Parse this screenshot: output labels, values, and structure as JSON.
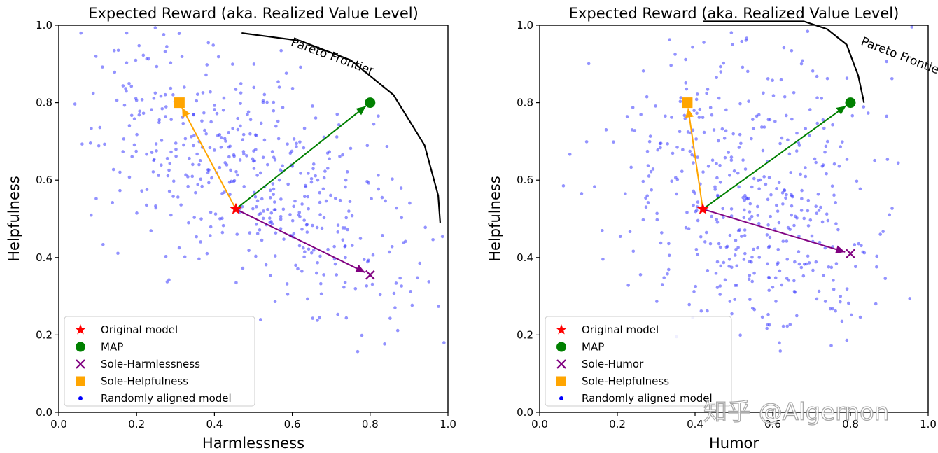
{
  "chart_data": [
    {
      "type": "scatter",
      "title": "Expected Reward (aka. Realized Value Level)",
      "xlabel": "Harmlessness",
      "ylabel": "Helpfulness",
      "xlim": [
        0.0,
        1.0
      ],
      "ylim": [
        0.0,
        1.0
      ],
      "xticks": [
        "0.0",
        "0.2",
        "0.4",
        "0.6",
        "0.8",
        "1.0"
      ],
      "yticks": [
        "0.0",
        "0.2",
        "0.4",
        "0.6",
        "0.8",
        "1.0"
      ],
      "legend_position": "lower-left",
      "annotation": "Pareto Frontier",
      "random_seed": 7,
      "random_count": 480,
      "random_cloud": {
        "center": [
          0.5,
          0.6
        ],
        "direction": [
          1.0,
          -0.78
        ],
        "spread_along": 0.28,
        "spread_across": 0.13
      },
      "frontier": [
        [
          0.47,
          0.98
        ],
        [
          0.62,
          0.96
        ],
        [
          0.75,
          0.91
        ],
        [
          0.86,
          0.82
        ],
        [
          0.94,
          0.69
        ],
        [
          0.975,
          0.56
        ],
        [
          0.98,
          0.49
        ]
      ],
      "origin": {
        "label": "Original model",
        "x": 0.455,
        "y": 0.525,
        "color": "#ff0000"
      },
      "points": [
        {
          "label": "MAP",
          "x": 0.8,
          "y": 0.8,
          "color": "#008000",
          "marker": "circle"
        },
        {
          "label": "Sole-Harmlessness",
          "x": 0.8,
          "y": 0.355,
          "color": "#800080",
          "marker": "x"
        },
        {
          "label": "Sole-Helpfulness",
          "x": 0.31,
          "y": 0.8,
          "color": "#ffa500",
          "marker": "square"
        }
      ],
      "legend": [
        "Original model",
        "MAP",
        "Sole-Harmlessness",
        "Sole-Helpfulness",
        "Randomly aligned model"
      ]
    },
    {
      "type": "scatter",
      "title": "Expected Reward (aka. Realized Value Level)",
      "xlabel": "Humor",
      "ylabel": "Helpfulness",
      "xlim": [
        0.0,
        1.0
      ],
      "ylim": [
        0.0,
        1.0
      ],
      "xticks": [
        "0.0",
        "0.2",
        "0.4",
        "0.6",
        "0.8",
        "1.0"
      ],
      "yticks": [
        "0.0",
        "0.2",
        "0.4",
        "0.6",
        "0.8",
        "1.0"
      ],
      "legend_position": "lower-left",
      "annotation": "Pareto Frontier",
      "random_seed": 19,
      "random_count": 460,
      "random_cloud": {
        "center": [
          0.55,
          0.55
        ],
        "direction": [
          0.35,
          -0.9
        ],
        "spread_along": 0.22,
        "spread_across": 0.17
      },
      "frontier": [
        [
          0.42,
          1.01
        ],
        [
          0.56,
          1.01
        ],
        [
          0.68,
          1.01
        ],
        [
          0.74,
          0.99
        ],
        [
          0.79,
          0.95
        ],
        [
          0.82,
          0.87
        ],
        [
          0.835,
          0.8
        ]
      ],
      "origin": {
        "label": "Original model",
        "x": 0.42,
        "y": 0.525,
        "color": "#ff0000"
      },
      "points": [
        {
          "label": "MAP",
          "x": 0.8,
          "y": 0.8,
          "color": "#008000",
          "marker": "circle"
        },
        {
          "label": "Sole-Humor",
          "x": 0.8,
          "y": 0.41,
          "color": "#800080",
          "marker": "x"
        },
        {
          "label": "Sole-Helpfulness",
          "x": 0.38,
          "y": 0.8,
          "color": "#ffa500",
          "marker": "square"
        }
      ],
      "legend": [
        "Original model",
        "MAP",
        "Sole-Humor",
        "Sole-Helpfulness",
        "Randomly aligned model"
      ]
    }
  ],
  "watermark": "知乎 @Algernon"
}
